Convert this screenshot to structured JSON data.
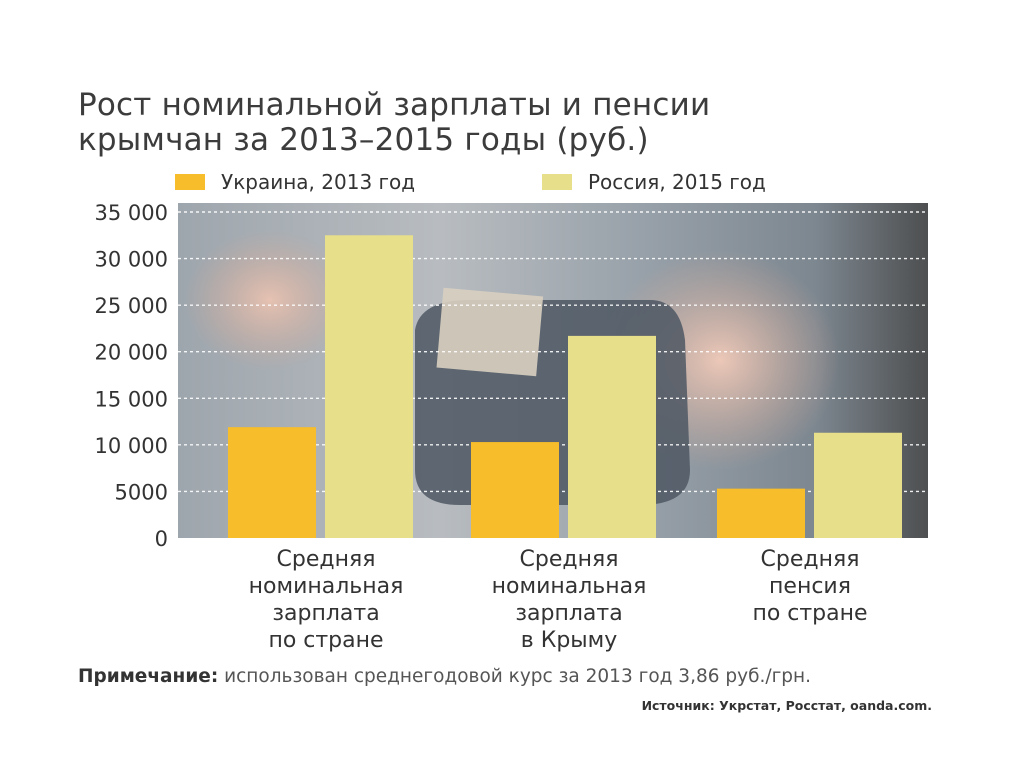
{
  "chart_data": {
    "type": "bar",
    "title": "Рост номинальной зарплаты и пенсии",
    "title_line2": "крымчан за 2013–2015 годы (руб.)",
    "categories": [
      [
        "Средняя",
        "номинальная",
        "зарплата",
        "по стране"
      ],
      [
        "Средняя",
        "номинальная",
        "зарплата",
        "в Крыму"
      ],
      [
        "Средняя",
        "пенсия",
        "по стране"
      ]
    ],
    "series": [
      {
        "name": "Украина, 2013 год",
        "color": "#f7bd2a",
        "values": [
          11900,
          10300,
          5300
        ]
      },
      {
        "name": "Россия, 2015 год",
        "color": "#e8df8a",
        "values": [
          32500,
          21700,
          11300
        ]
      }
    ],
    "yticks": [
      "0",
      "5000",
      "10 000",
      "15 000",
      "20 000",
      "25 000",
      "30 000",
      "35 000"
    ],
    "ylim": [
      0,
      35000
    ],
    "grid": true,
    "legend_position": "top"
  },
  "note": {
    "label": "Примечание:",
    "text": " использован среднегодовой курс за 2013 год 3,86 руб./грн."
  },
  "source": "Источник: Укрстат, Росстат, oanda.com."
}
